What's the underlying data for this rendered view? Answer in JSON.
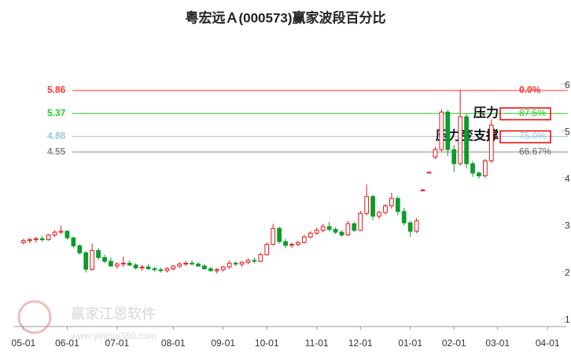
{
  "chart_data": {
    "type": "candlestick",
    "title": "粤宏远Ａ(000573)赢家波段百分比",
    "watermark": "赢家江恩软件",
    "watermark_url": "www.yingjia360.com",
    "up_color": "#e8141c",
    "down_color": "#0a9c2a",
    "xlim": [
      -1.5,
      87
    ],
    "xticks": [
      {
        "value": 0,
        "label": "05-01"
      },
      {
        "value": 7,
        "label": "06-01"
      },
      {
        "value": 15,
        "label": "07-01"
      },
      {
        "value": 24,
        "label": "08-01"
      },
      {
        "value": 32,
        "label": "09-01"
      },
      {
        "value": 39,
        "label": "10-01"
      },
      {
        "value": 47,
        "label": "11-01"
      },
      {
        "value": 54,
        "label": "12-01"
      },
      {
        "value": 62,
        "label": "01-01"
      },
      {
        "value": 69,
        "label": "02-01"
      },
      {
        "value": 76,
        "label": "03-01"
      },
      {
        "value": 84,
        "label": "04-01"
      }
    ],
    "ylim": [
      0.83,
      7.1
    ],
    "yticks": [
      1,
      2,
      3,
      4,
      5,
      6
    ],
    "open": [
      2.62,
      2.66,
      2.68,
      2.7,
      2.68,
      2.78,
      2.84,
      2.86,
      2.72,
      2.55,
      2.4,
      2.05,
      2.45,
      2.3,
      2.22,
      2.12,
      2.16,
      2.18,
      2.14,
      2.08,
      2.1,
      2.06,
      2.04,
      2.02,
      2.06,
      2.12,
      2.16,
      2.18,
      2.16,
      2.12,
      2.06,
      2.02,
      2.04,
      2.1,
      2.18,
      2.16,
      2.2,
      2.24,
      2.22,
      2.36,
      2.58,
      2.92,
      2.64,
      2.56,
      2.58,
      2.62,
      2.74,
      2.82,
      2.88,
      2.96,
      2.9,
      2.84,
      2.78,
      3.02,
      2.88,
      3.24,
      3.6,
      3.18,
      3.26,
      3.4,
      3.56,
      3.28,
      3.04,
      2.86,
      3.72,
      4.1,
      4.44,
      4.6,
      5.4,
      4.6,
      4.3,
      5.3,
      4.3,
      4.1,
      4.04,
      4.36
    ],
    "high": [
      2.7,
      2.72,
      2.74,
      2.76,
      2.8,
      2.88,
      2.98,
      2.88,
      2.74,
      2.58,
      2.44,
      2.6,
      2.5,
      2.36,
      2.3,
      2.2,
      2.32,
      2.24,
      2.18,
      2.14,
      2.16,
      2.1,
      2.08,
      2.1,
      2.14,
      2.2,
      2.22,
      2.24,
      2.2,
      2.16,
      2.1,
      2.08,
      2.12,
      2.24,
      2.22,
      2.22,
      2.28,
      2.3,
      2.4,
      2.62,
      3.02,
      2.96,
      2.7,
      2.62,
      2.66,
      2.78,
      2.86,
      2.94,
      3.02,
      3.06,
      2.94,
      2.88,
      3.08,
      3.06,
      3.3,
      3.86,
      3.64,
      3.3,
      3.44,
      3.68,
      3.6,
      3.36,
      3.08,
      3.14,
      3.76,
      4.12,
      4.66,
      5.46,
      5.44,
      4.7,
      5.88,
      5.36,
      4.36,
      4.14,
      4.4,
      5.24
    ],
    "low": [
      2.58,
      2.6,
      2.62,
      2.64,
      2.66,
      2.74,
      2.8,
      2.68,
      2.5,
      2.36,
      1.98,
      2.02,
      2.25,
      2.18,
      2.1,
      2.06,
      2.1,
      2.12,
      2.04,
      2.02,
      2.04,
      2.0,
      1.98,
      1.98,
      2.02,
      2.08,
      2.12,
      2.14,
      2.1,
      2.04,
      2.0,
      1.96,
      2.0,
      2.06,
      2.12,
      2.1,
      2.16,
      2.18,
      2.2,
      2.34,
      2.56,
      2.6,
      2.5,
      2.5,
      2.54,
      2.6,
      2.7,
      2.78,
      2.84,
      2.86,
      2.8,
      2.74,
      2.76,
      2.84,
      2.86,
      3.2,
      3.1,
      3.12,
      3.22,
      3.34,
      3.2,
      2.98,
      2.74,
      2.82,
      3.72,
      4.1,
      4.4,
      4.56,
      4.46,
      4.12,
      4.26,
      4.2,
      4.02,
      3.98,
      4.0,
      4.32
    ],
    "close": [
      2.66,
      2.68,
      2.7,
      2.68,
      2.78,
      2.84,
      2.86,
      2.72,
      2.55,
      2.4,
      2.05,
      2.45,
      2.3,
      2.22,
      2.12,
      2.16,
      2.18,
      2.14,
      2.08,
      2.1,
      2.06,
      2.04,
      2.02,
      2.06,
      2.12,
      2.16,
      2.18,
      2.16,
      2.12,
      2.06,
      2.02,
      2.04,
      2.1,
      2.18,
      2.16,
      2.2,
      2.24,
      2.22,
      2.36,
      2.58,
      2.92,
      2.64,
      2.56,
      2.58,
      2.62,
      2.74,
      2.82,
      2.88,
      2.96,
      2.9,
      2.84,
      2.78,
      3.02,
      2.88,
      3.24,
      3.6,
      3.18,
      3.26,
      3.4,
      3.56,
      3.28,
      3.04,
      2.86,
      3.08,
      3.74,
      4.12,
      4.6,
      5.4,
      4.6,
      4.3,
      5.3,
      4.3,
      4.1,
      4.04,
      4.36,
      5.12
    ],
    "levels": [
      {
        "value": 5.86,
        "percent": "0.0%",
        "color": "#ff3030"
      },
      {
        "value": 5.37,
        "percent": "87.5%",
        "color": "#22cc22",
        "annotation": "压力",
        "boxed": true
      },
      {
        "value": 4.88,
        "percent": "75.0%",
        "color": "#9cc3e8",
        "annotation": "压力变支撑",
        "boxed": true
      },
      {
        "value": 4.55,
        "percent": "66.67%",
        "color": "#888888"
      }
    ]
  }
}
